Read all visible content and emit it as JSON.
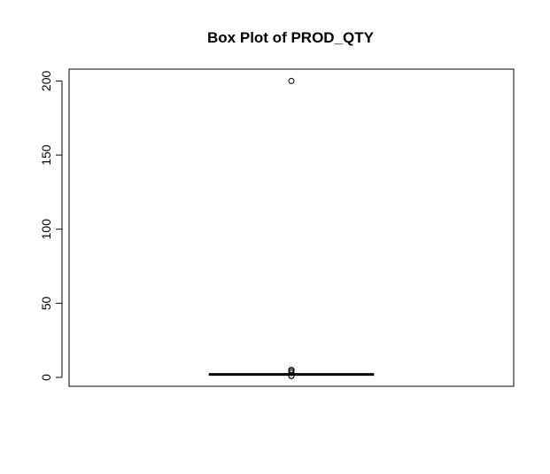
{
  "chart_data": {
    "type": "box",
    "title": "Box Plot of PROD_QTY",
    "xlabel": "",
    "ylabel": "",
    "ylim": [
      -6,
      208
    ],
    "y_ticks": [
      0,
      50,
      100,
      150,
      200
    ],
    "grid": false,
    "legend": "none",
    "box": {
      "min": 1,
      "q1": 2,
      "median": 2,
      "q3": 2,
      "max": 2
    },
    "outliers": [
      200,
      1,
      1,
      3,
      4,
      5,
      5
    ],
    "colors": {
      "stroke": "#000000",
      "background": "#ffffff"
    }
  }
}
